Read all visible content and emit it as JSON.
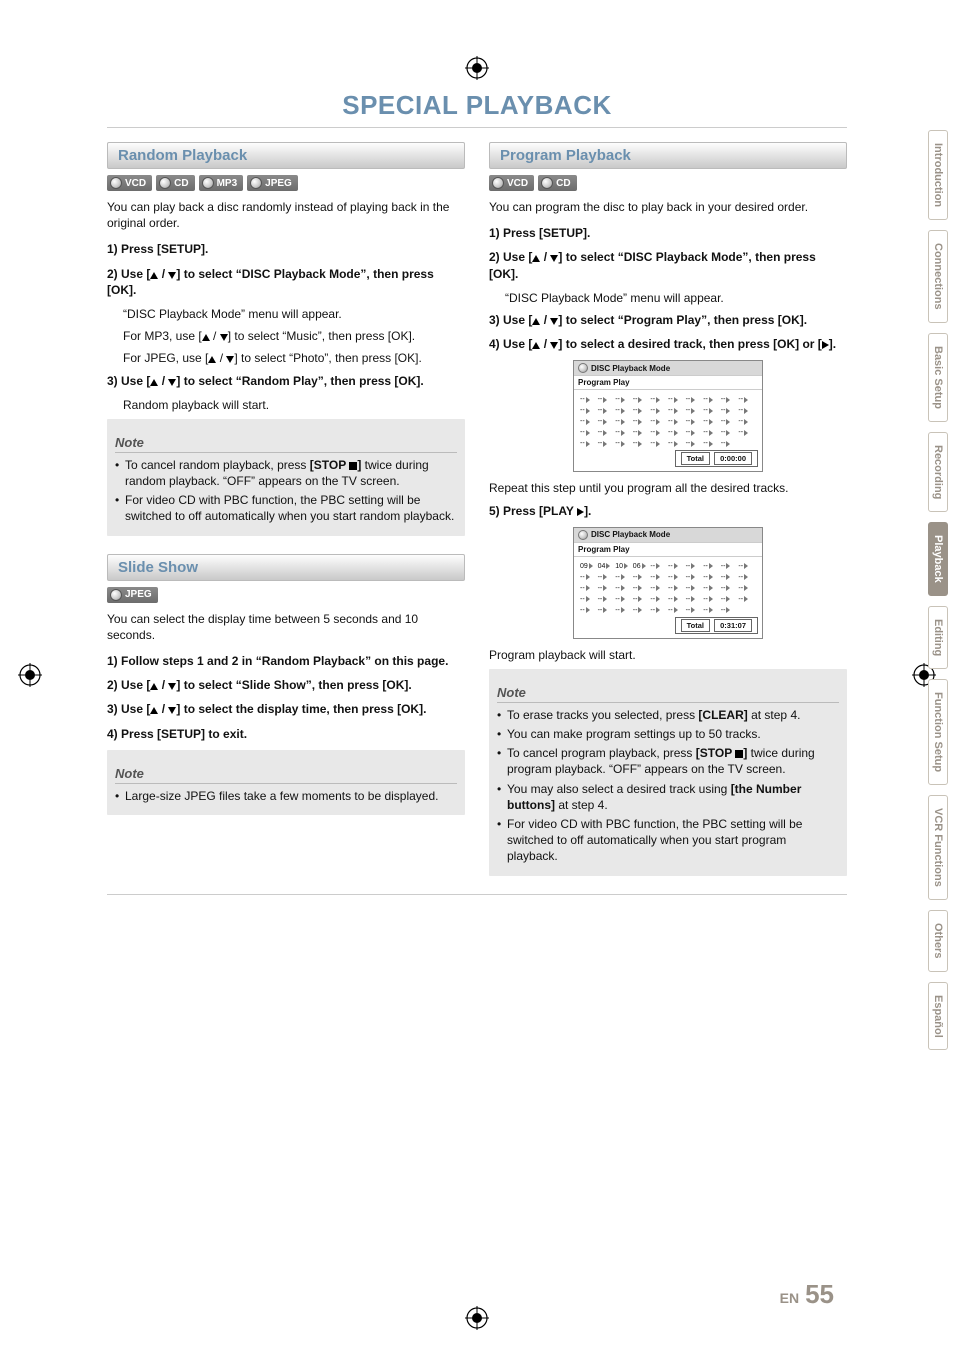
{
  "page": {
    "title": "SPECIAL PLAYBACK",
    "lang_code": "EN",
    "page_number": "55"
  },
  "tabs": [
    {
      "label": "Introduction",
      "active": false
    },
    {
      "label": "Connections",
      "active": false
    },
    {
      "label": "Basic Setup",
      "active": false
    },
    {
      "label": "Recording",
      "active": false
    },
    {
      "label": "Playback",
      "active": true
    },
    {
      "label": "Editing",
      "active": false
    },
    {
      "label": "Function Setup",
      "active": false
    },
    {
      "label": "VCR Functions",
      "active": false
    },
    {
      "label": "Others",
      "active": false
    },
    {
      "label": "Español",
      "active": false
    }
  ],
  "random": {
    "heading": "Random Playback",
    "badges": [
      "VCD",
      "CD",
      "MP3",
      "JPEG"
    ],
    "intro": "You can play back a disc randomly instead of playing back in the original order.",
    "step1": "1) Press [SETUP].",
    "step2": "2) Use [▲ / ▼] to select “DISC Playback Mode”, then press [OK].",
    "step2_sub1": "“DISC Playback Mode” menu will appear.",
    "step2_sub2": "For MP3, use [▲ / ▼] to select “Music”, then press [OK].",
    "step2_sub3": "For JPEG, use [▲ / ▼] to select “Photo”, then press [OK].",
    "step3": "3) Use [▲ / ▼] to select “Random Play”, then press [OK].",
    "step3_sub": "Random playback will start.",
    "note_label": "Note",
    "notes": [
      "To cancel random playback, press [STOP ■] twice during random playback. “OFF” appears on the TV screen.",
      "For video CD with PBC function, the PBC setting will be switched to off automatically when you start random playback."
    ]
  },
  "slide": {
    "heading": "Slide Show",
    "badges": [
      "JPEG"
    ],
    "intro": "You can select the display time between 5 seconds and 10 seconds.",
    "step1": "1) Follow steps 1 and 2 in “Random Playback” on this page.",
    "step2": "2) Use [▲ / ▼] to select “Slide Show”, then press [OK].",
    "step3": "3) Use [▲ / ▼] to select the display time, then press [OK].",
    "step4": "4) Press [SETUP] to exit.",
    "note_label": "Note",
    "notes": [
      "Large-size JPEG files take a few moments to be displayed."
    ]
  },
  "program": {
    "heading": "Program Playback",
    "badges": [
      "VCD",
      "CD"
    ],
    "intro": "You can program the disc to play back in your desired order.",
    "step1": "1) Press [SETUP].",
    "step2": "2) Use [▲ / ▼] to select “DISC Playback Mode”, then press [OK].",
    "step2_sub": "“DISC Playback Mode” menu will appear.",
    "step3": "3) Use [▲ / ▼] to select “Program Play”, then press [OK].",
    "step4": "4) Use [▲ / ▼] to select a desired track, then press [OK] or [▶].",
    "osd1": {
      "title": "DISC Playback Mode",
      "sub": "Program Play",
      "total_label": "Total",
      "total_value": "0:00:00",
      "slots": [
        "--",
        "--",
        "--",
        "--",
        "--",
        "--",
        "--",
        "--",
        "--",
        "--",
        "--",
        "--",
        "--",
        "--",
        "--",
        "--",
        "--",
        "--",
        "--",
        "--",
        "--",
        "--",
        "--",
        "--",
        "--",
        "--",
        "--",
        "--",
        "--",
        "--",
        "--",
        "--",
        "--",
        "--",
        "--",
        "--",
        "--",
        "--",
        "--",
        "--",
        "--",
        "--",
        "--",
        "--",
        "--",
        "--",
        "--",
        "--",
        "--"
      ]
    },
    "step4_after": "Repeat this step until you program all the desired tracks.",
    "step5": "5) Press [PLAY ▶].",
    "osd2": {
      "title": "DISC Playback Mode",
      "sub": "Program Play",
      "total_label": "Total",
      "total_value": "0:31:07",
      "slots": [
        "09",
        "04",
        "10",
        "06",
        "--",
        "--",
        "--",
        "--",
        "--",
        "--",
        "--",
        "--",
        "--",
        "--",
        "--",
        "--",
        "--",
        "--",
        "--",
        "--",
        "--",
        "--",
        "--",
        "--",
        "--",
        "--",
        "--",
        "--",
        "--",
        "--",
        "--",
        "--",
        "--",
        "--",
        "--",
        "--",
        "--",
        "--",
        "--",
        "--",
        "--",
        "--",
        "--",
        "--",
        "--",
        "--",
        "--",
        "--",
        "--"
      ]
    },
    "step5_after": "Program playback will start.",
    "note_label": "Note",
    "notes": [
      "To erase tracks you selected, press [CLEAR] at step 4.",
      "You can make program settings up to 50 tracks.",
      "To cancel program playback, press [STOP ■] twice during program playback. “OFF” appears on the TV screen.",
      "You may also select a desired track using [the Number buttons] at step 4.",
      "For video CD with PBC function, the PBC setting will be switched to off automatically when you start program playback."
    ]
  }
}
